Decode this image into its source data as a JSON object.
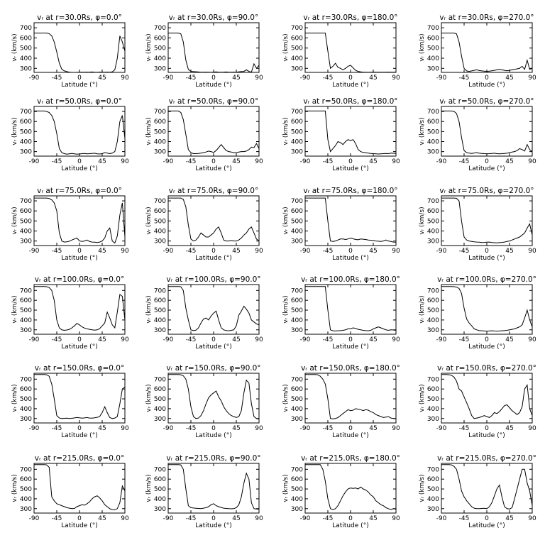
{
  "chart_data": {
    "type": "line",
    "x": [
      -90,
      -85,
      -80,
      -75,
      -70,
      -65,
      -60,
      -55,
      -50,
      -45,
      -40,
      -35,
      -30,
      -25,
      -20,
      -15,
      -10,
      -5,
      0,
      5,
      10,
      15,
      20,
      25,
      30,
      35,
      40,
      45,
      50,
      55,
      60,
      65,
      70,
      75,
      80,
      85,
      90
    ],
    "xticks": [
      -90,
      -45,
      0,
      45,
      90
    ],
    "xlim": [
      -90,
      90
    ],
    "yticks": [
      300,
      400,
      500,
      600,
      700
    ],
    "xlabel": "Latitude (°)",
    "ylabel": "vᵣ (km/s)",
    "panels": [
      {
        "title": "vᵣ at r=30.0Rs, φ=0.0°",
        "ylim": [
          260,
          750
        ],
        "y": [
          648,
          648,
          648,
          648,
          648,
          648,
          642,
          620,
          560,
          460,
          350,
          290,
          275,
          268,
          262,
          260,
          260,
          261,
          262,
          262,
          262,
          263,
          262,
          264,
          262,
          261,
          263,
          262,
          262,
          263,
          262,
          265,
          285,
          400,
          620,
          560,
          470
        ]
      },
      {
        "title": "vᵣ at r=30.0Rs, φ=90.0°",
        "ylim": [
          260,
          750
        ],
        "y": [
          648,
          648,
          648,
          648,
          648,
          640,
          560,
          380,
          290,
          270,
          268,
          266,
          264,
          262,
          262,
          263,
          262,
          261,
          263,
          265,
          262,
          262,
          263,
          264,
          262,
          262,
          263,
          262,
          265,
          268,
          270,
          285,
          270,
          262,
          345,
          300,
          330
        ]
      },
      {
        "title": "vᵣ at r=30.0Rs, φ=180.0°",
        "ylim": [
          260,
          750
        ],
        "y": [
          648,
          648,
          648,
          648,
          648,
          648,
          648,
          648,
          648,
          470,
          300,
          320,
          350,
          310,
          300,
          285,
          300,
          320,
          330,
          305,
          280,
          270,
          265,
          262,
          262,
          261,
          262,
          263,
          262,
          262,
          262,
          262,
          262,
          263,
          262,
          262,
          263
        ]
      },
      {
        "title": "vᵣ at r=30.0Rs, φ=270.0°",
        "ylim": [
          260,
          750
        ],
        "y": [
          648,
          648,
          648,
          648,
          648,
          648,
          640,
          560,
          420,
          300,
          275,
          270,
          275,
          280,
          285,
          278,
          275,
          272,
          270,
          272,
          276,
          280,
          285,
          290,
          285,
          280,
          276,
          280,
          285,
          290,
          295,
          300,
          320,
          290,
          380,
          290,
          300
        ]
      },
      {
        "title": "vᵣ at r=50.0Rs, φ=0.0°",
        "ylim": [
          255,
          750
        ],
        "y": [
          705,
          705,
          705,
          705,
          705,
          700,
          690,
          660,
          600,
          480,
          330,
          290,
          280,
          275,
          278,
          282,
          278,
          275,
          276,
          280,
          282,
          278,
          280,
          282,
          284,
          278,
          276,
          280,
          290,
          285,
          280,
          285,
          300,
          400,
          600,
          660,
          430
        ]
      },
      {
        "title": "vᵣ at r=50.0Rs, φ=90.0°",
        "ylim": [
          255,
          750
        ],
        "y": [
          705,
          705,
          705,
          705,
          705,
          690,
          620,
          470,
          320,
          290,
          280,
          280,
          282,
          285,
          290,
          296,
          305,
          300,
          292,
          310,
          340,
          370,
          340,
          310,
          300,
          296,
          290,
          290,
          295,
          300,
          300,
          305,
          320,
          345,
          340,
          380,
          330
        ]
      },
      {
        "title": "vᵣ at r=50.0Rs, φ=180.0°",
        "ylim": [
          255,
          750
        ],
        "y": [
          705,
          705,
          705,
          705,
          705,
          705,
          705,
          705,
          705,
          420,
          300,
          330,
          360,
          400,
          390,
          370,
          400,
          420,
          410,
          420,
          380,
          320,
          300,
          292,
          288,
          285,
          282,
          280,
          278,
          276,
          278,
          280,
          282,
          280,
          285,
          283,
          282
        ]
      },
      {
        "title": "vᵣ at r=50.0Rs, φ=270.0°",
        "ylim": [
          255,
          750
        ],
        "y": [
          705,
          705,
          705,
          705,
          705,
          700,
          680,
          600,
          440,
          310,
          290,
          285,
          282,
          286,
          290,
          284,
          282,
          280,
          278,
          280,
          282,
          284,
          280,
          278,
          280,
          282,
          284,
          290,
          295,
          300,
          310,
          330,
          320,
          305,
          370,
          320,
          300
        ]
      },
      {
        "title": "vᵣ at r=75.0Rs, φ=0.0°",
        "ylim": [
          255,
          750
        ],
        "y": [
          728,
          728,
          728,
          728,
          728,
          728,
          724,
          710,
          680,
          600,
          380,
          300,
          290,
          292,
          298,
          310,
          320,
          330,
          300,
          295,
          300,
          310,
          295,
          290,
          288,
          285,
          290,
          300,
          330,
          400,
          430,
          300,
          280,
          350,
          560,
          680,
          340
        ]
      },
      {
        "title": "vᵣ at r=75.0Rs, φ=90.0°",
        "ylim": [
          255,
          750
        ],
        "y": [
          728,
          728,
          728,
          728,
          728,
          728,
          715,
          640,
          460,
          320,
          300,
          310,
          340,
          380,
          360,
          340,
          340,
          360,
          380,
          420,
          440,
          380,
          310,
          300,
          300,
          305,
          300,
          300,
          310,
          330,
          360,
          380,
          420,
          440,
          380,
          320,
          300
        ]
      },
      {
        "title": "vᵣ at r=75.0Rs, φ=180.0°",
        "ylim": [
          255,
          750
        ],
        "y": [
          728,
          728,
          728,
          728,
          728,
          728,
          728,
          728,
          728,
          500,
          300,
          296,
          300,
          310,
          320,
          320,
          315,
          320,
          330,
          322,
          315,
          312,
          320,
          318,
          315,
          310,
          308,
          305,
          300,
          298,
          295,
          300,
          310,
          300,
          295,
          290,
          288
        ]
      },
      {
        "title": "vᵣ at r=75.0Rs, φ=270.0°",
        "ylim": [
          255,
          750
        ],
        "y": [
          728,
          728,
          728,
          728,
          728,
          728,
          725,
          700,
          500,
          340,
          310,
          300,
          296,
          292,
          290,
          288,
          285,
          286,
          288,
          290,
          285,
          283,
          282,
          284,
          286,
          290,
          296,
          300,
          310,
          320,
          330,
          340,
          360,
          380,
          430,
          470,
          360
        ]
      },
      {
        "title": "vᵣ at r=100.0Rs, φ=0.0°",
        "ylim": [
          255,
          760
        ],
        "y": [
          740,
          740,
          740,
          740,
          740,
          738,
          730,
          700,
          600,
          400,
          320,
          300,
          295,
          298,
          305,
          320,
          340,
          365,
          350,
          330,
          318,
          310,
          305,
          300,
          296,
          300,
          312,
          340,
          370,
          480,
          420,
          350,
          320,
          480,
          660,
          640,
          400
        ]
      },
      {
        "title": "vᵣ at r=100.0Rs, φ=90.0°",
        "ylim": [
          255,
          760
        ],
        "y": [
          740,
          740,
          740,
          740,
          740,
          738,
          700,
          520,
          400,
          300,
          292,
          296,
          320,
          370,
          410,
          420,
          400,
          440,
          470,
          490,
          400,
          320,
          300,
          292,
          290,
          295,
          300,
          340,
          450,
          490,
          540,
          510,
          470,
          400,
          380,
          360,
          350
        ]
      },
      {
        "title": "vᵣ at r=100.0Rs, φ=180.0°",
        "ylim": [
          255,
          760
        ],
        "y": [
          740,
          740,
          740,
          740,
          740,
          740,
          740,
          740,
          740,
          500,
          300,
          290,
          288,
          290,
          292,
          295,
          300,
          310,
          312,
          320,
          315,
          305,
          300,
          295,
          292,
          290,
          295,
          310,
          320,
          330,
          320,
          310,
          300,
          295,
          300,
          298,
          295
        ]
      },
      {
        "title": "vᵣ at r=100.0Rs, φ=270.0°",
        "ylim": [
          255,
          760
        ],
        "y": [
          740,
          740,
          740,
          740,
          740,
          738,
          735,
          720,
          670,
          520,
          410,
          370,
          340,
          310,
          300,
          292,
          290,
          288,
          286,
          288,
          290,
          288,
          287,
          288,
          290,
          292,
          295,
          300,
          305,
          310,
          320,
          330,
          350,
          420,
          500,
          400,
          330
        ]
      },
      {
        "title": "vᵣ at r=150.0Rs, φ=0.0°",
        "ylim": [
          255,
          760
        ],
        "y": [
          748,
          748,
          748,
          748,
          748,
          745,
          730,
          650,
          500,
          330,
          305,
          300,
          302,
          304,
          300,
          302,
          306,
          310,
          308,
          304,
          306,
          310,
          305,
          303,
          308,
          312,
          320,
          360,
          420,
          360,
          310,
          300,
          305,
          320,
          450,
          600,
          620
        ]
      },
      {
        "title": "vᵣ at r=150.0Rs, φ=90.0°",
        "ylim": [
          255,
          760
        ],
        "y": [
          748,
          748,
          748,
          748,
          748,
          745,
          735,
          700,
          600,
          420,
          320,
          300,
          305,
          330,
          380,
          450,
          510,
          540,
          560,
          580,
          520,
          480,
          420,
          380,
          350,
          330,
          320,
          310,
          320,
          380,
          560,
          690,
          660,
          450,
          320,
          300,
          295
        ]
      },
      {
        "title": "vᵣ at r=150.0Rs, φ=180.0°",
        "ylim": [
          255,
          760
        ],
        "y": [
          748,
          748,
          748,
          748,
          748,
          745,
          730,
          700,
          650,
          500,
          300,
          296,
          300,
          310,
          330,
          350,
          370,
          390,
          380,
          385,
          400,
          395,
          390,
          380,
          390,
          385,
          370,
          360,
          340,
          330,
          320,
          310,
          315,
          320,
          305,
          300,
          298
        ]
      },
      {
        "title": "vᵣ at r=150.0Rs, φ=270.0°",
        "ylim": [
          255,
          760
        ],
        "y": [
          748,
          748,
          748,
          745,
          740,
          720,
          680,
          600,
          580,
          520,
          460,
          400,
          330,
          300,
          305,
          310,
          320,
          330,
          320,
          310,
          330,
          360,
          350,
          370,
          400,
          430,
          440,
          410,
          380,
          360,
          340,
          360,
          420,
          600,
          640,
          400,
          330
        ]
      },
      {
        "title": "vᵣ at r=215.0Rs, φ=0.0°",
        "ylim": [
          255,
          760
        ],
        "y": [
          748,
          748,
          748,
          748,
          748,
          745,
          720,
          420,
          380,
          350,
          340,
          330,
          320,
          310,
          305,
          300,
          302,
          320,
          330,
          340,
          335,
          350,
          370,
          400,
          420,
          430,
          410,
          380,
          340,
          320,
          300,
          290,
          288,
          300,
          360,
          530,
          480
        ]
      },
      {
        "title": "vᵣ at r=215.0Rs, φ=90.0°",
        "ylim": [
          255,
          760
        ],
        "y": [
          748,
          748,
          748,
          748,
          748,
          745,
          700,
          500,
          330,
          310,
          306,
          304,
          302,
          300,
          305,
          310,
          320,
          340,
          350,
          330,
          320,
          312,
          305,
          302,
          300,
          298,
          300,
          310,
          340,
          420,
          560,
          660,
          600,
          360,
          300,
          296,
          295
        ]
      },
      {
        "title": "vᵣ at r=215.0Rs, φ=180.0°",
        "ylim": [
          255,
          760
        ],
        "y": [
          748,
          748,
          748,
          748,
          748,
          748,
          748,
          700,
          580,
          400,
          300,
          290,
          300,
          330,
          380,
          430,
          470,
          500,
          510,
          505,
          510,
          500,
          520,
          500,
          490,
          470,
          440,
          420,
          380,
          360,
          340,
          330,
          310,
          300,
          290,
          300,
          295
        ]
      },
      {
        "title": "vᵣ at r=215.0Rs, φ=270.0°",
        "ylim": [
          255,
          760
        ],
        "y": [
          748,
          748,
          748,
          748,
          745,
          730,
          700,
          600,
          480,
          420,
          380,
          350,
          320,
          305,
          300,
          300,
          302,
          304,
          300,
          320,
          360,
          430,
          500,
          540,
          420,
          320,
          300,
          296,
          310,
          400,
          500,
          600,
          700,
          700,
          560,
          480,
          330
        ]
      }
    ]
  }
}
